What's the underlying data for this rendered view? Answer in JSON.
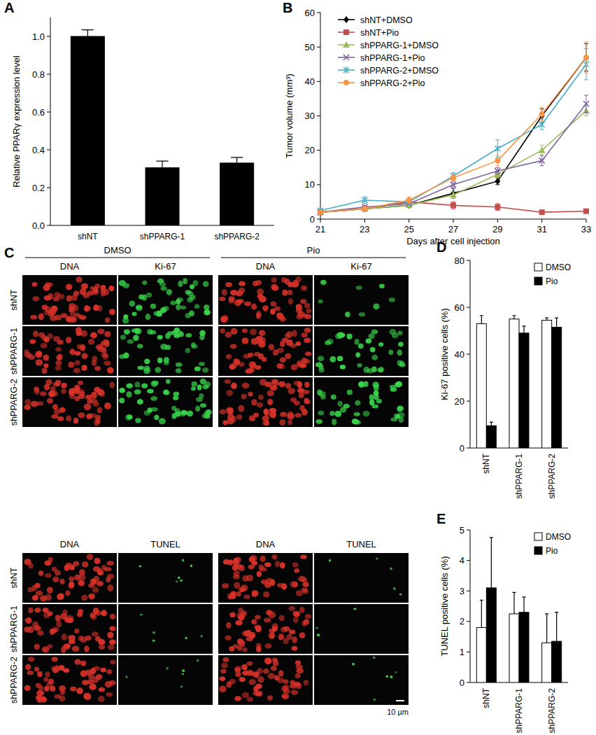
{
  "chart_data": [
    {
      "panel_label": "A",
      "type": "bar",
      "categories": [
        "shNT",
        "shPPARG-1",
        "shPPARG-2"
      ],
      "values": [
        1.0,
        0.305,
        0.33
      ],
      "errors": [
        0.035,
        0.035,
        0.03
      ],
      "color": "#000000",
      "ylabel": "Relative PPARγ expression level",
      "ylim": [
        0,
        1.1
      ],
      "yticks": [
        {
          "value": 0,
          "label": "0.0"
        },
        {
          "value": 0.2,
          "label": "0.2"
        },
        {
          "value": 0.4,
          "label": "0.4"
        },
        {
          "value": 0.6,
          "label": "0.6"
        },
        {
          "value": 0.8,
          "label": "0.8"
        },
        {
          "value": 1,
          "label": "1.0"
        }
      ]
    },
    {
      "panel_label": "B",
      "type": "line",
      "x": [
        21,
        23,
        25,
        27,
        29,
        31,
        33
      ],
      "xlim": [
        21,
        33
      ],
      "xticks": [
        21,
        23,
        25,
        27,
        29,
        31,
        33
      ],
      "ylim": [
        0,
        60
      ],
      "yticks": [
        0,
        10,
        20,
        30,
        40,
        50,
        60
      ],
      "xlabel": "Days after cell injection",
      "ylabel": "Tumor volume (mm³)",
      "legend": "top-left",
      "series": [
        {
          "name": "shNT+DMSO",
          "color": "#000000",
          "marker": "diamond",
          "values": [
            2,
            3,
            4,
            7.5,
            11,
            30,
            47
          ],
          "errors": [
            0.5,
            0.5,
            0.5,
            1.5,
            1,
            2,
            4
          ]
        },
        {
          "name": "shNT+Pio",
          "color": "#c0504d",
          "marker": "square",
          "values": [
            2,
            3,
            5,
            4,
            3.5,
            2,
            2.3
          ],
          "errors": [
            0.5,
            0.5,
            0.5,
            1,
            1,
            0.5,
            0.5
          ]
        },
        {
          "name": "shPPARG-1+DMSO",
          "color": "#9bbb59",
          "marker": "triangle",
          "values": [
            2,
            3,
            4,
            7,
            13,
            20,
            31.5
          ],
          "errors": [
            0.5,
            0.5,
            0.5,
            1,
            1,
            1.5,
            1.5
          ]
        },
        {
          "name": "shPPARG-1+Pio",
          "color": "#8064a2",
          "marker": "x",
          "values": [
            2,
            3.5,
            4.5,
            10,
            14,
            17,
            33.5
          ],
          "errors": [
            0.5,
            0.5,
            0.5,
            1,
            1,
            1.5,
            2.5
          ]
        },
        {
          "name": "shPPARG-2+DMSO",
          "color": "#4bacc6",
          "marker": "asterisk",
          "values": [
            2.5,
            5.5,
            5,
            12.5,
            20.5,
            27.5,
            45
          ],
          "errors": [
            0.5,
            1,
            1,
            1,
            2.5,
            1.5,
            4.5
          ]
        },
        {
          "name": "shPPARG-2+Pio",
          "color": "#f79646",
          "marker": "circle",
          "values": [
            2,
            3,
            5.5,
            12,
            17,
            30.5,
            47
          ],
          "errors": [
            0.5,
            0.5,
            1,
            1,
            1.5,
            2,
            4.5
          ]
        }
      ]
    },
    {
      "panel_label": "D",
      "type": "bar",
      "categories": [
        "shNT",
        "shPPARG-1",
        "shPPARG-2"
      ],
      "ylim": [
        0,
        80
      ],
      "yticks": [
        0,
        20,
        40,
        60,
        80
      ],
      "ylabel": "Ki-67 positive cells (%)",
      "legend": "top-right",
      "series": [
        {
          "name": "DMSO",
          "color": "#ffffff",
          "values": [
            53,
            55,
            54.5
          ],
          "errors": [
            3.5,
            1.5,
            1
          ]
        },
        {
          "name": "Pio",
          "color": "#000000",
          "values": [
            9.5,
            49,
            51.5
          ],
          "errors": [
            1.5,
            3,
            4
          ]
        }
      ]
    },
    {
      "panel_label": "E",
      "type": "bar",
      "categories": [
        "shNT",
        "shPPARG-1",
        "shPPARG-2"
      ],
      "ylim": [
        0,
        5
      ],
      "yticks": [
        0,
        1,
        2,
        3,
        4,
        5
      ],
      "ylabel": "TUNEL positive cells (%)",
      "legend": "top-right",
      "series": [
        {
          "name": "DMSO",
          "color": "#ffffff",
          "values": [
            1.8,
            2.25,
            1.3
          ],
          "errors": [
            0.9,
            0.7,
            0.95
          ]
        },
        {
          "name": "Pio",
          "color": "#000000",
          "values": [
            3.1,
            2.3,
            1.35
          ],
          "errors": [
            1.65,
            0.5,
            0.95
          ]
        }
      ]
    }
  ],
  "figure_c": {
    "panel_label": "C",
    "groups": [
      "DMSO",
      "Pio"
    ],
    "blocks": [
      {
        "channels": [
          "DNA",
          "Ki-67"
        ]
      },
      {
        "channels": [
          "DNA",
          "TUNEL"
        ]
      }
    ],
    "rows": [
      "shNT",
      "shPPARG-1",
      "shPPARG-2"
    ],
    "scale_bar": "10 µm"
  }
}
